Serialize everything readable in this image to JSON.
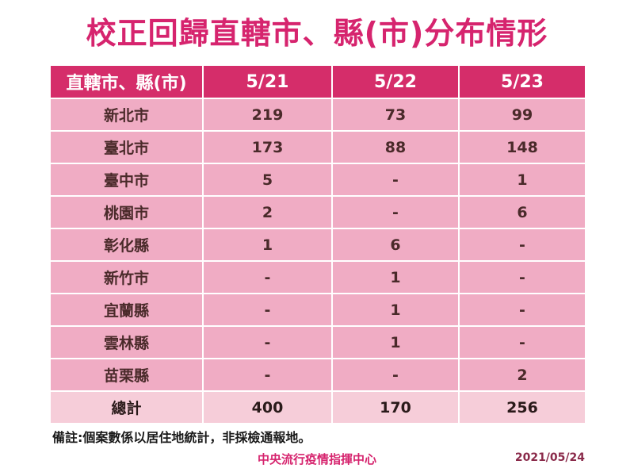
{
  "title": "校正回歸直轄市、縣(市)分布情形",
  "table": {
    "headers": [
      "直轄市、縣(市)",
      "5/21",
      "5/22",
      "5/23"
    ],
    "rows": [
      [
        "新北市",
        "219",
        "73",
        "99"
      ],
      [
        "臺北市",
        "173",
        "88",
        "148"
      ],
      [
        "臺中市",
        "5",
        "-",
        "1"
      ],
      [
        "桃園市",
        "2",
        "-",
        "6"
      ],
      [
        "彰化縣",
        "1",
        "6",
        "-"
      ],
      [
        "新竹市",
        "-",
        "1",
        "-"
      ],
      [
        "宜蘭縣",
        "-",
        "1",
        "-"
      ],
      [
        "雲林縣",
        "-",
        "1",
        "-"
      ],
      [
        "苗栗縣",
        "-",
        "-",
        "2"
      ]
    ],
    "total": [
      "總計",
      "400",
      "170",
      "256"
    ]
  },
  "note": "備註:個案數係以居住地統計，非採檢通報地。",
  "footer": {
    "organization": "中央流行疫情指揮中心",
    "date": "2021/05/24"
  },
  "colors": {
    "title": "#d6246e",
    "header_bg": "#d52d6a",
    "row_bg": "#f0acc4",
    "total_bg": "#f6cdd9"
  }
}
